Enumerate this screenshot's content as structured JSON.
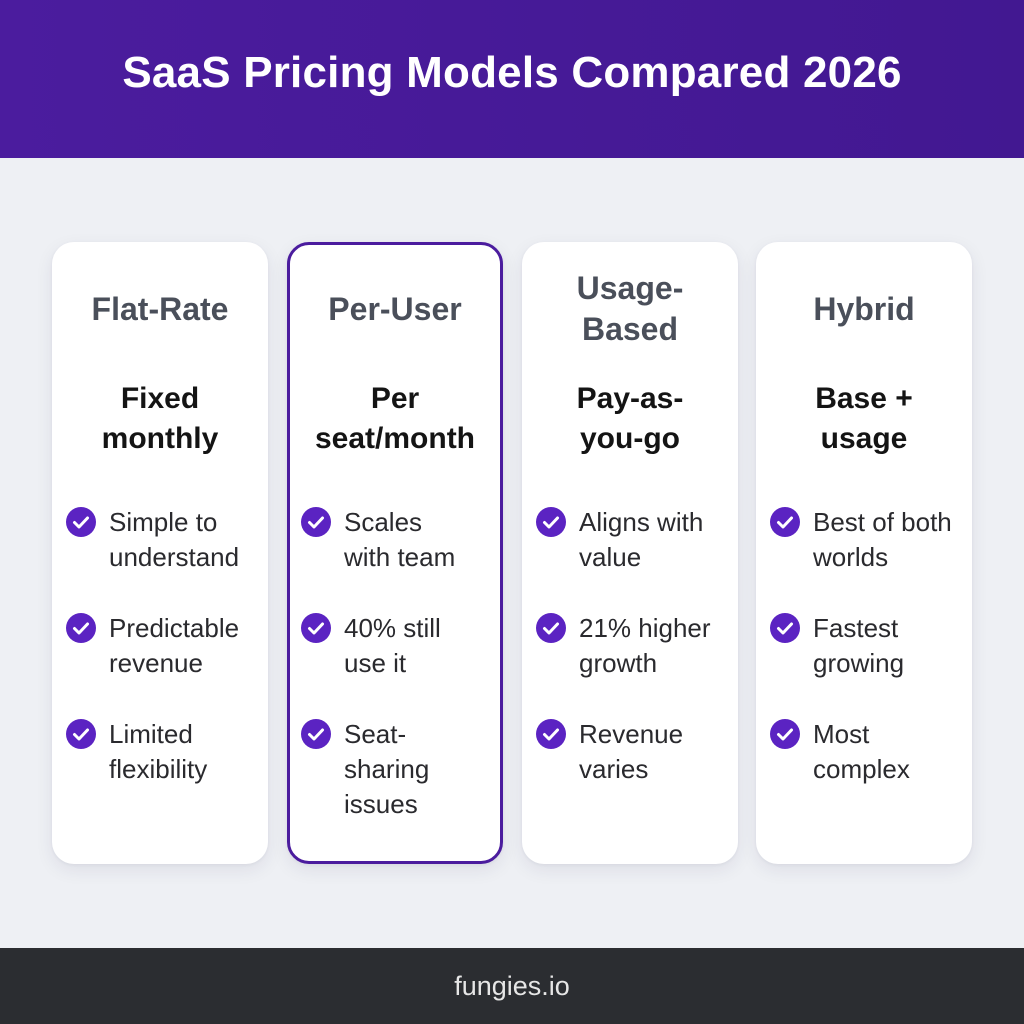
{
  "header": {
    "title": "SaaS Pricing Models Compared 2026"
  },
  "colors": {
    "header_bg": "#4B1C9E",
    "accent": "#5B23C2",
    "page_bg": "#EEF0F4",
    "card_bg": "#FFFFFF",
    "footer_bg": "#2B2D31"
  },
  "plans": [
    {
      "name": "Flat-Rate",
      "tagline": "Fixed monthly",
      "highlighted": false,
      "features": [
        {
          "icon": "check-circle-icon",
          "text": "Simple to understand"
        },
        {
          "icon": "check-circle-icon",
          "text": "Predictable revenue"
        },
        {
          "icon": "check-circle-icon",
          "text": "Limited flexibility"
        }
      ]
    },
    {
      "name": "Per-User",
      "tagline": "Per seat/month",
      "highlighted": true,
      "features": [
        {
          "icon": "check-circle-icon",
          "text": "Scales with team"
        },
        {
          "icon": "check-circle-icon",
          "text": "40% still use it"
        },
        {
          "icon": "check-circle-icon",
          "text": "Seat-sharing issues"
        }
      ]
    },
    {
      "name": "Usage-Based",
      "tagline": "Pay-as-you-go",
      "highlighted": false,
      "features": [
        {
          "icon": "check-circle-icon",
          "text": "Aligns with value"
        },
        {
          "icon": "check-circle-icon",
          "text": "21% higher growth"
        },
        {
          "icon": "check-circle-icon",
          "text": "Revenue varies"
        }
      ]
    },
    {
      "name": "Hybrid",
      "tagline": "Base + usage",
      "highlighted": false,
      "features": [
        {
          "icon": "check-circle-icon",
          "text": "Best of both worlds"
        },
        {
          "icon": "check-circle-icon",
          "text": "Fastest growing"
        },
        {
          "icon": "check-circle-icon",
          "text": "Most complex"
        }
      ]
    }
  ],
  "footer": {
    "text": "fungies.io"
  }
}
